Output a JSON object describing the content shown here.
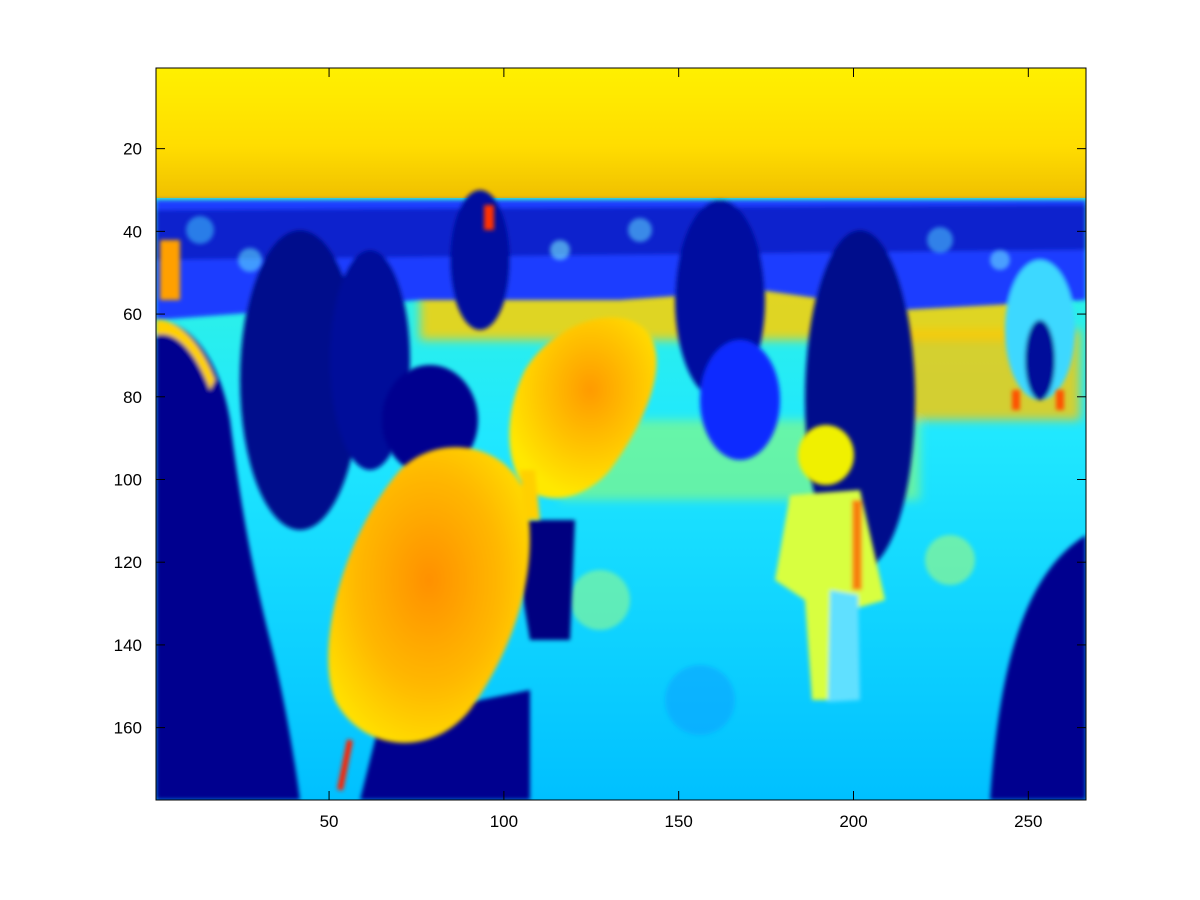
{
  "chart_data": {
    "type": "heatmap",
    "title": "",
    "xlabel": "",
    "ylabel": "",
    "colormap": "jet",
    "grid": false,
    "legend": "none",
    "xlim": [
      0.5,
      266.5
    ],
    "ylim": [
      0.5,
      177.5
    ],
    "y_reversed": true,
    "xticks": [
      50,
      100,
      150,
      200,
      250
    ],
    "yticks": [
      20,
      40,
      60,
      80,
      100,
      120,
      140,
      160
    ],
    "image_size": {
      "cols": 266,
      "rows": 177
    }
  },
  "colors": {
    "background": "#ffffff",
    "axes_frame": "#000000",
    "jet_low": "#00008f",
    "jet_mid": "#7fff7f",
    "jet_high": "#800000"
  }
}
